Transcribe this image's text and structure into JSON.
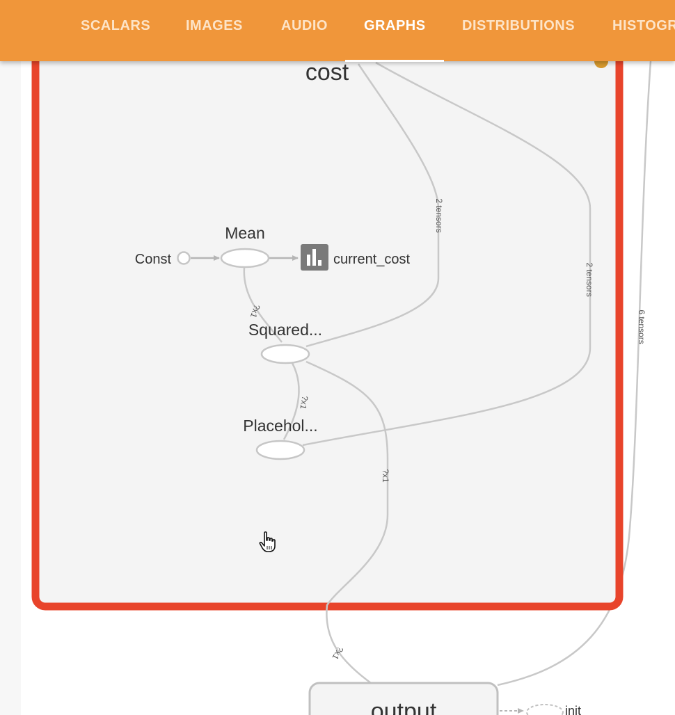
{
  "tabs": [
    {
      "label": "SCALARS",
      "active": false
    },
    {
      "label": "IMAGES",
      "active": false
    },
    {
      "label": "AUDIO",
      "active": false
    },
    {
      "label": "GRAPHS",
      "active": true
    },
    {
      "label": "DISTRIBUTIONS",
      "active": false
    },
    {
      "label": "HISTOGR",
      "active": false
    }
  ],
  "colors": {
    "topbar": "#f0963a",
    "selected_border": "#e8442b",
    "group_fill": "#f4f4f4",
    "edge": "#c8c8c8"
  },
  "graph": {
    "group": {
      "label": "cost",
      "selected": true
    },
    "nodes": {
      "const": "Const",
      "mean": "Mean",
      "current_cost": "current_cost",
      "squared": "Squared...",
      "placeholder": "Placehol...",
      "output": "output",
      "init": "init"
    },
    "edge_labels": {
      "to_squared_tensors": "2 tensors",
      "to_placeholder_tensors": "2 tensors",
      "outer_tensors": "6 tensors",
      "mean_squared_shape": "?x1",
      "squared_placeholder_shape": "?x1",
      "squared_output_shape": "?x1",
      "output_in_shape": "?x1"
    }
  }
}
